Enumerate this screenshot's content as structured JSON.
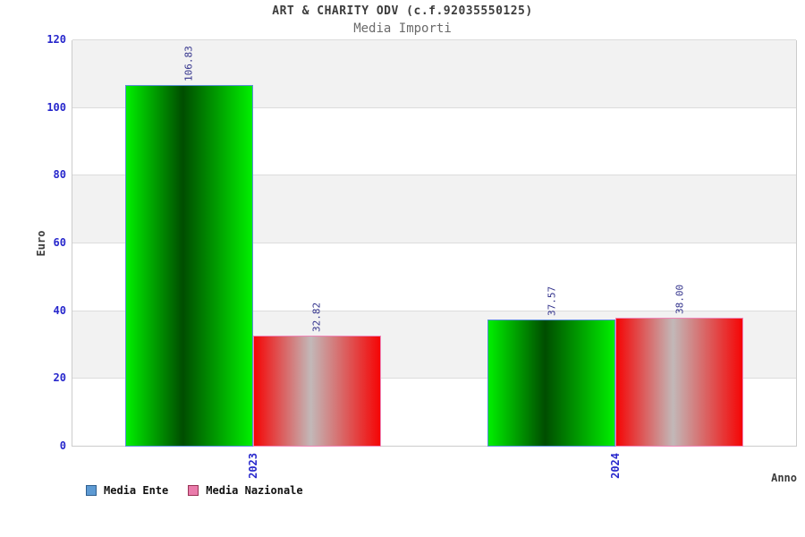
{
  "header": {
    "title": "ART & CHARITY ODV (c.f.92035550125)",
    "subtitle": "Media Importi"
  },
  "chart_data": {
    "type": "bar",
    "title": "ART & CHARITY ODV (c.f.92035550125)",
    "subtitle": "Media Importi",
    "categories": [
      "2023",
      "2024"
    ],
    "series": [
      {
        "name": "Media Ente",
        "values": [
          106.83,
          37.57
        ],
        "labels": [
          "106.83",
          "37.57"
        ],
        "legend_fill": "#5d9ad3",
        "legend_border": "#2f5f8f",
        "bar_outline": "#5a8fd8",
        "gradient_edge": "#00ef00",
        "gradient_mid": "#004d00"
      },
      {
        "name": "Media Nazionale",
        "values": [
          32.82,
          38.0
        ],
        "labels": [
          "32.82",
          "38.00"
        ],
        "legend_fill": "#ea7bab",
        "legend_border": "#993355",
        "bar_outline": "#ef86b8",
        "gradient_edge": "#f50505",
        "gradient_mid": "#c2b8b8"
      }
    ],
    "xlabel": "Anno",
    "ylabel": "Euro",
    "ylim": [
      0,
      120
    ],
    "ytick_step": 20,
    "yticks": [
      "0",
      "20",
      "40",
      "60",
      "80",
      "100",
      "120"
    ],
    "grid": "horizontal-bands",
    "legend_position": "bottom-left"
  },
  "colors": {
    "tick_label": "#2727cc",
    "value_label": "#33338c",
    "band_gray": "#f2f2f2",
    "band_white": "#ffffff",
    "gridline": "#dcdcdc",
    "plot_border": "#cccccc",
    "title_text": "#3c3c3c",
    "subtitle_text": "#6b6b6b"
  }
}
